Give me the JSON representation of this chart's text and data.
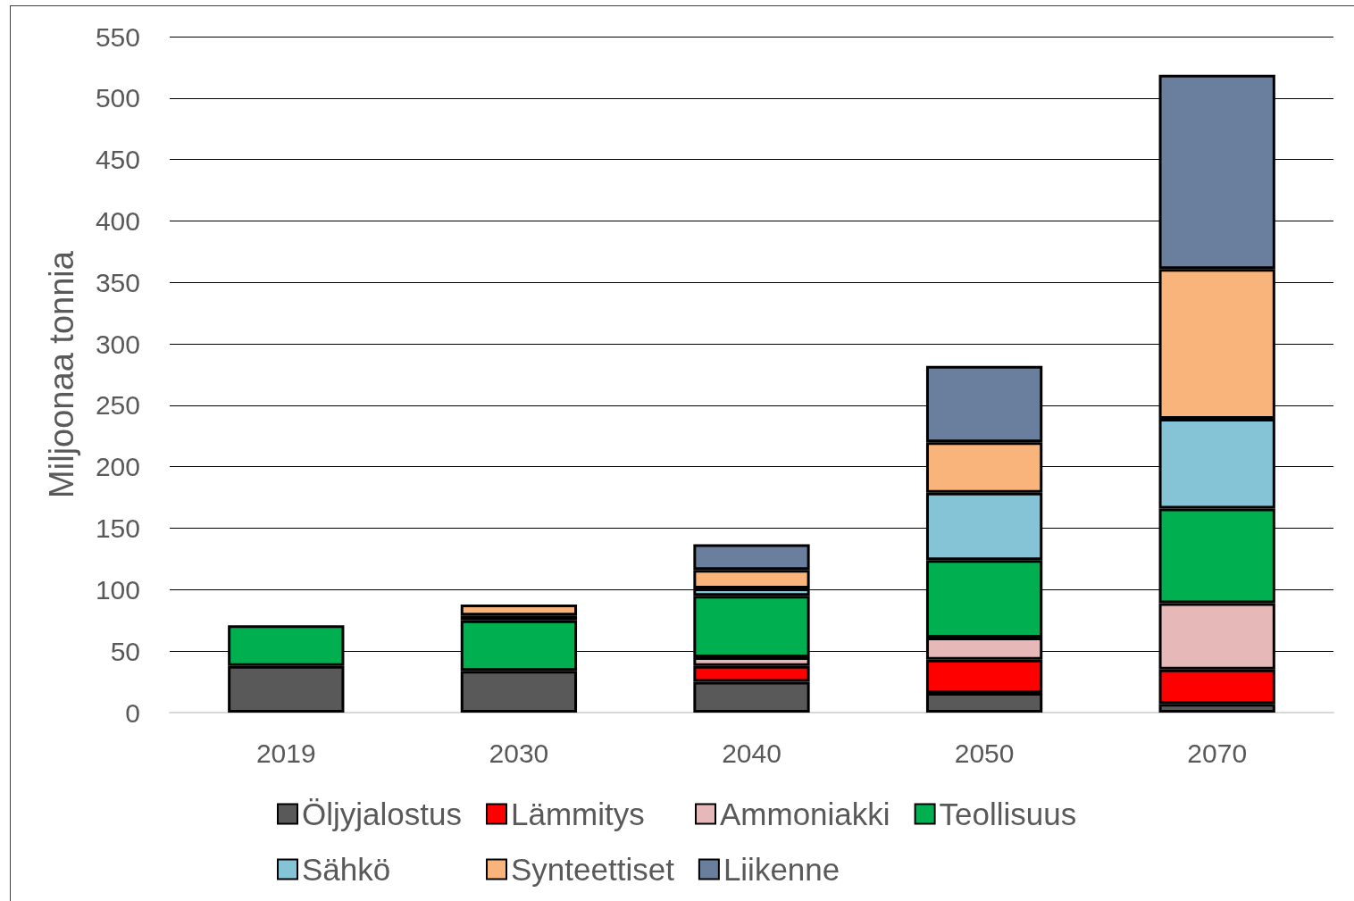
{
  "chart_data": {
    "type": "bar",
    "stacked": true,
    "ylabel": "Miljoonaa tonnia",
    "categories": [
      "2019",
      "2030",
      "2040",
      "2050",
      "2070"
    ],
    "series": [
      {
        "name": "Öljyjalostus",
        "color": "#595959",
        "values": [
          38,
          34,
          25,
          16,
          7
        ]
      },
      {
        "name": "Lämmitys",
        "color": "#ff0000",
        "values": [
          null,
          null,
          13,
          27,
          28
        ]
      },
      {
        "name": "Ammoniakki",
        "color": "#e6b8b7",
        "values": [
          null,
          null,
          7,
          18,
          54
        ]
      },
      {
        "name": "Teollisuus",
        "color": "#00b050",
        "values": [
          33,
          41,
          50,
          63,
          77
        ]
      },
      {
        "name": "Sähkö",
        "color": "#84c4d6",
        "values": [
          null,
          4,
          6,
          55,
          73
        ]
      },
      {
        "name": "Synteettiset",
        "color": "#f9b47c",
        "values": [
          null,
          9,
          15,
          41,
          122
        ]
      },
      {
        "name": "Liikenne",
        "color": "#6a7f9e",
        "values": [
          null,
          null,
          21,
          62,
          158
        ]
      }
    ],
    "ylim": [
      0,
      550
    ],
    "yticks": [
      0,
      50,
      100,
      150,
      200,
      250,
      300,
      350,
      400,
      450,
      500,
      550
    ],
    "grid": "y",
    "legend": "bottom"
  }
}
